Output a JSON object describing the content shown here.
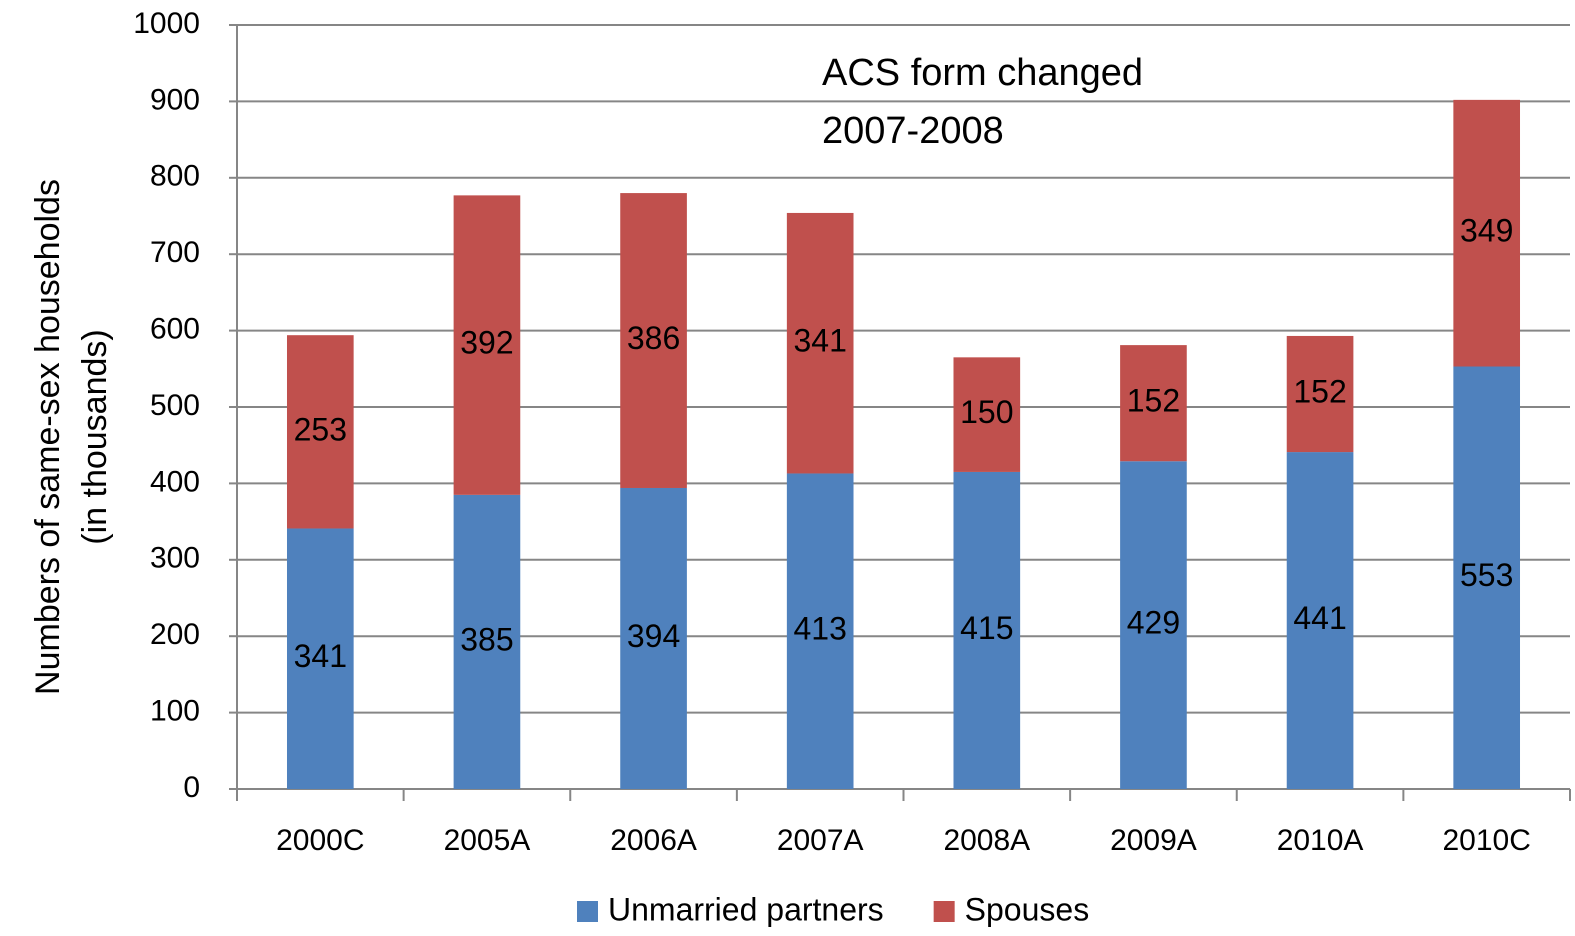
{
  "chart_data": {
    "type": "stacked_bar",
    "annotation": [
      "ACS form changed",
      "2007-2008"
    ],
    "y_label": [
      "Numbers of same-sex households",
      "(in thousands)"
    ],
    "categories": [
      "2000C",
      "2005A",
      "2006A",
      "2007A",
      "2008A",
      "2009A",
      "2010A",
      "2010C"
    ],
    "series": [
      {
        "name": "Unmarried partners",
        "color": "#4f81bd",
        "values": [
          341,
          385,
          394,
          413,
          415,
          429,
          441,
          553
        ]
      },
      {
        "name": "Spouses",
        "color": "#c0504d",
        "values": [
          253,
          392,
          386,
          341,
          150,
          152,
          152,
          349
        ]
      }
    ],
    "ylim": [
      0,
      1000
    ],
    "yticks": [
      0,
      100,
      200,
      300,
      400,
      500,
      600,
      700,
      800,
      900,
      1000
    ],
    "grid": true,
    "legend": "bottom"
  }
}
